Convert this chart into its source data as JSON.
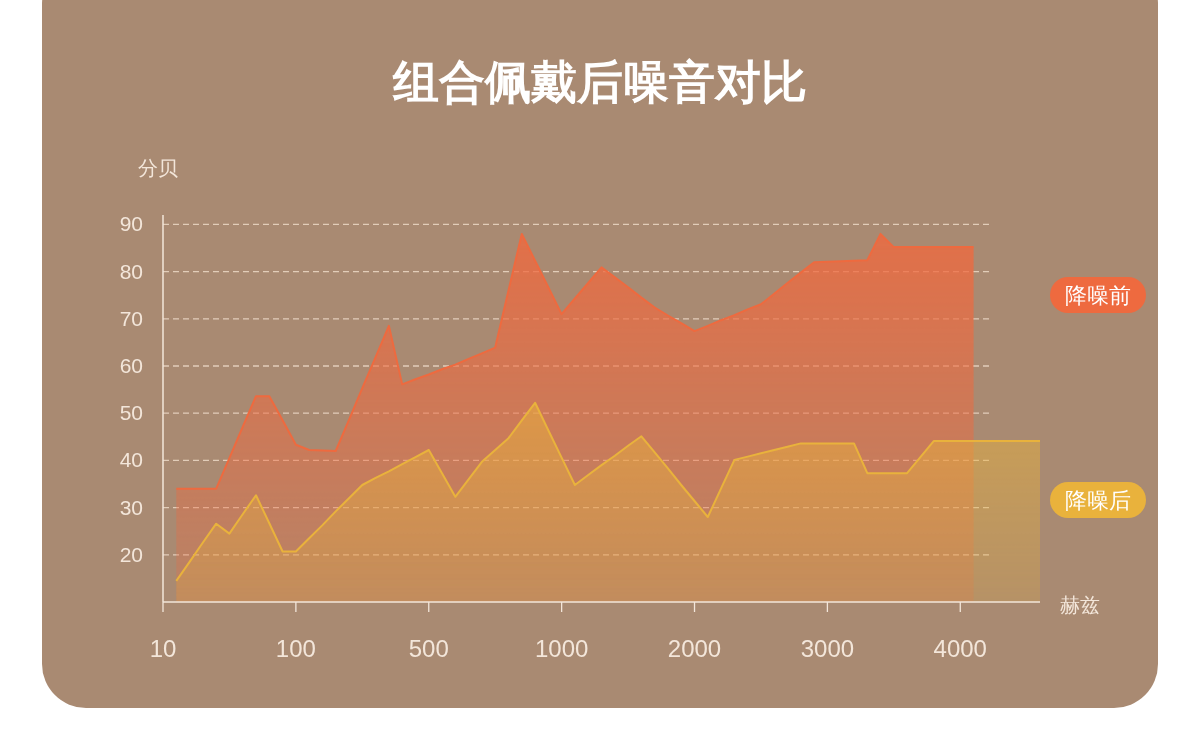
{
  "chart_data": {
    "type": "area",
    "title": "组合佩戴后噪音对比",
    "ylabel": "分贝",
    "xlabel": "赫兹",
    "categories": [
      "10",
      null,
      null,
      null,
      null,
      null,
      null,
      null,
      null,
      null,
      "100",
      null,
      null,
      null,
      null,
      null,
      null,
      null,
      null,
      null,
      "500",
      null,
      null,
      null,
      null,
      null,
      null,
      null,
      null,
      null,
      "1000",
      null,
      null,
      null,
      null,
      null,
      null,
      null,
      null,
      null,
      "2000",
      null,
      null,
      null,
      null,
      null,
      null,
      null,
      null,
      null,
      "3000",
      null,
      null,
      null,
      null,
      null,
      null,
      null,
      null,
      null,
      "4000",
      null,
      null,
      null,
      null,
      null,
      null
    ],
    "ylim": [
      10,
      92
    ],
    "yticks": [
      20,
      30,
      40,
      50,
      60,
      70,
      80,
      90
    ],
    "grid": "y",
    "marker": "none",
    "line_style": "solid",
    "series": [
      {
        "name": "降噪前",
        "color": "#ee6a3f",
        "values": [
          null,
          34,
          34,
          34,
          34,
          40.5,
          47.1,
          53.6,
          53.6,
          48.5,
          43.3,
          42.2,
          42.1,
          42,
          48.6,
          55.3,
          61.9,
          68.5,
          56.1,
          57.2,
          58.2,
          59.3,
          60.3,
          61.5,
          62.7,
          63.9,
          76,
          88,
          82.3,
          76.7,
          71,
          74.3,
          77.6,
          80.9,
          78.8,
          76.7,
          74.5,
          72.4,
          70.7,
          69.1,
          67.4,
          68.5,
          69.7,
          70.8,
          72,
          73.1,
          75.3,
          77.6,
          79.8,
          82,
          82.1,
          82.2,
          82.3,
          82.4,
          88,
          85.2,
          85.2,
          85.2,
          85.2,
          85.2,
          85.2,
          85.2,
          null,
          null,
          null,
          null,
          null
        ]
      },
      {
        "name": "降噪后",
        "color": "#e9b23c",
        "values": [
          null,
          14.5,
          18.5,
          22.6,
          26.6,
          24.5,
          28.6,
          32.6,
          26.7,
          20.7,
          20.7,
          23.5,
          26.3,
          29.2,
          32,
          34.8,
          36.3,
          37.7,
          39.2,
          40.7,
          42.2,
          37.3,
          32.3,
          36,
          39.7,
          42.2,
          44.7,
          48.5,
          52.2,
          46.4,
          40.6,
          34.8,
          36.9,
          39,
          41,
          43.1,
          45.1,
          41.7,
          38.3,
          34.8,
          31.4,
          28,
          34.1,
          40.1,
          40.8,
          41.5,
          42.2,
          42.9,
          43.6,
          43.6,
          43.6,
          43.6,
          43.6,
          37.3,
          37.3,
          37.3,
          37.3,
          40.7,
          44.1,
          44.1,
          44.1,
          44.1,
          44.1,
          44.1,
          44.1,
          44.1,
          44.1
        ]
      }
    ]
  }
}
